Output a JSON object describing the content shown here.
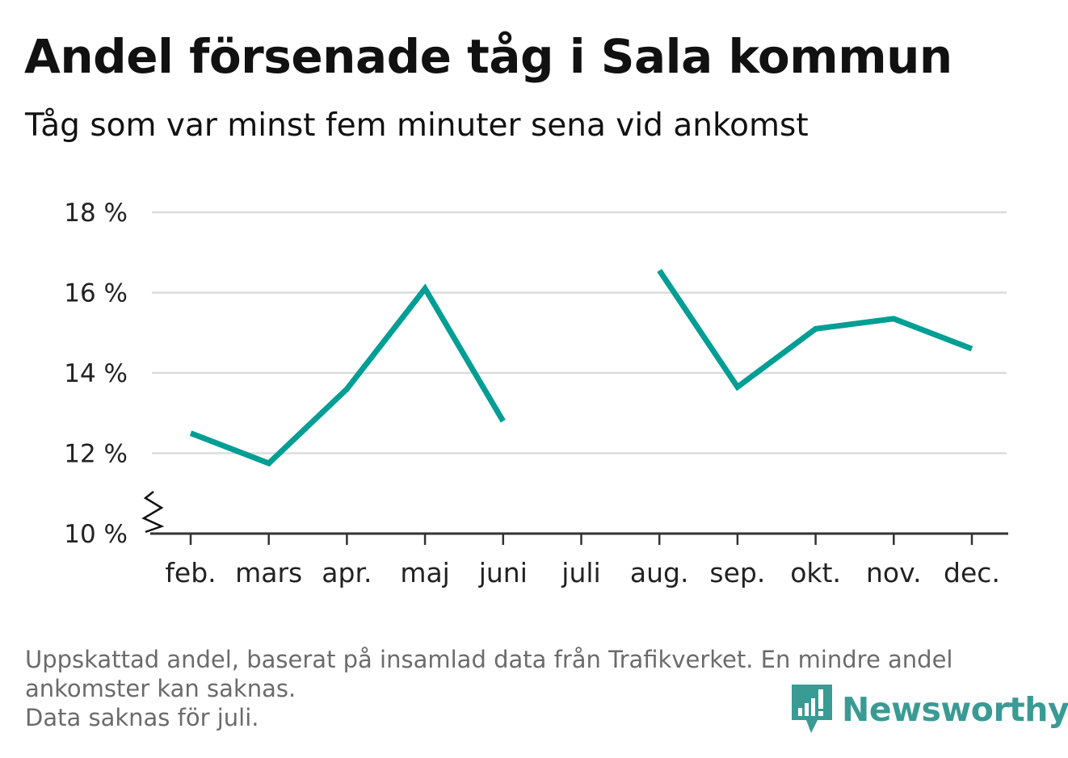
{
  "header": {
    "title": "Andel försenade tåg i Sala kommun",
    "subtitle": "Tåg som var minst fem minuter sena vid ankomst"
  },
  "footer": {
    "note_line1": "Uppskattad andel, baserat på insamlad data från Trafikverket. En mindre andel",
    "note_line2": "ankomster kan saknas.",
    "note_line3": "Data saknas för juli."
  },
  "brand": {
    "name": "Newsworthy",
    "icon": "newsworthy-logo-icon",
    "color": "#3a9a94"
  },
  "chart_data": {
    "type": "line",
    "title": "Andel försenade tåg i Sala kommun",
    "subtitle": "Tåg som var minst fem minuter sena vid ankomst",
    "categories": [
      "feb.",
      "mars",
      "apr.",
      "maj",
      "juni",
      "juli",
      "aug.",
      "sep.",
      "okt.",
      "nov.",
      "dec."
    ],
    "series": [
      {
        "values": [
          12.5,
          11.75,
          13.6,
          16.1,
          12.8,
          null,
          16.55,
          13.65,
          15.1,
          15.35,
          14.6
        ],
        "color": "#009e94"
      }
    ],
    "ylim": [
      10,
      18
    ],
    "yticks": [
      10,
      12,
      14,
      16,
      18
    ],
    "ytick_labels": [
      "10 %",
      "12 %",
      "14 %",
      "16 %",
      "18 %"
    ],
    "y_axis_break": true,
    "grid": true,
    "xlabel": "",
    "ylabel": ""
  }
}
